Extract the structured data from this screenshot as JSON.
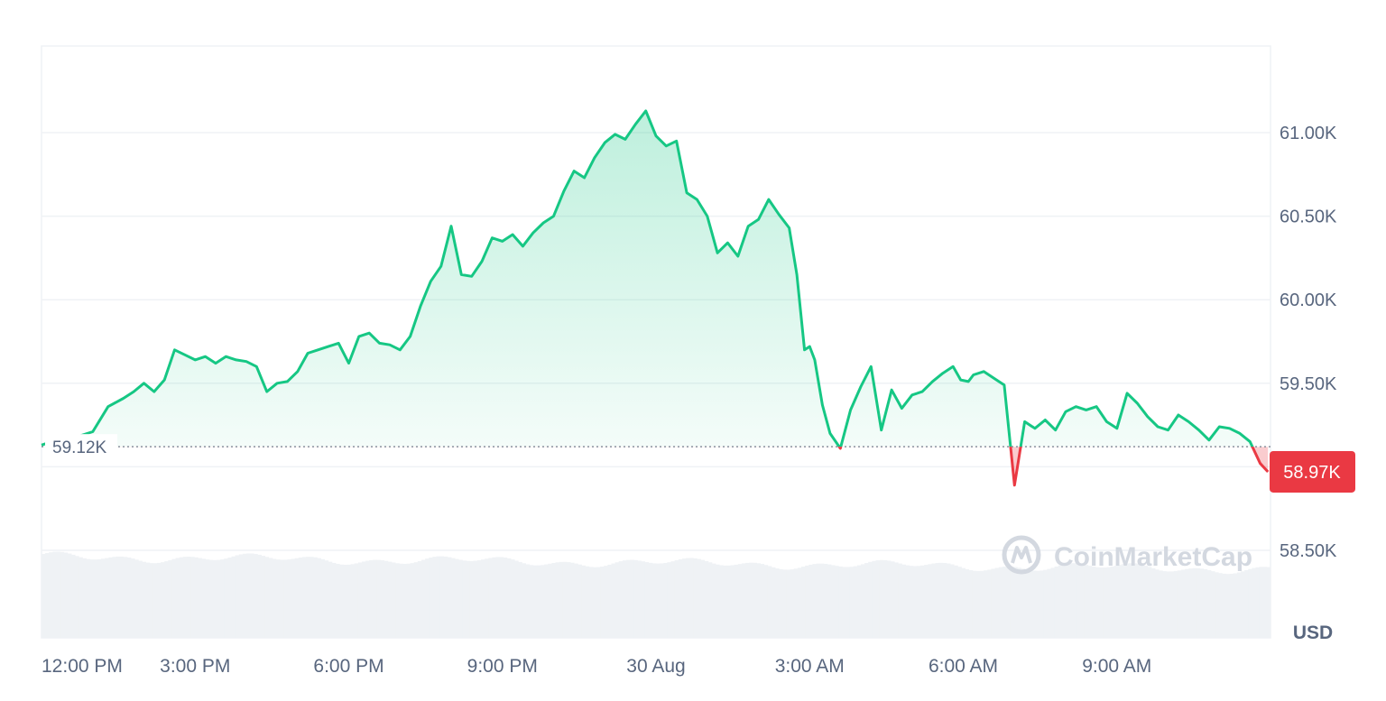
{
  "chart_data": {
    "type": "area",
    "currency_label": "USD",
    "y_tick_labels": [
      "61.00K",
      "60.50K",
      "60.00K",
      "59.50K",
      "58.50K"
    ],
    "y_ticks": [
      61000,
      60500,
      60000,
      59500,
      58500
    ],
    "x_tick_labels": [
      "12:00 PM",
      "3:00 PM",
      "6:00 PM",
      "9:00 PM",
      "30 Aug",
      "3:00 AM",
      "6:00 AM",
      "9:00 AM"
    ],
    "x_ticks": [
      12,
      15,
      18,
      21,
      24,
      27,
      30,
      33
    ],
    "xlim": [
      12,
      36
    ],
    "ylim": [
      58300,
      61500
    ],
    "grid": true,
    "baseline": {
      "value": 59120,
      "label": "59.12K"
    },
    "last_price": {
      "value": 58970,
      "label": "58.97K"
    },
    "colors": {
      "up": "#16c784",
      "down": "#ea3943",
      "grid": "#eff2f5",
      "volume": "#eff2f5"
    },
    "watermark": "CoinMarketCap",
    "series": [
      {
        "x": [
          12.0,
          12.2,
          12.4,
          12.6,
          12.8,
          13.0,
          13.3,
          13.6,
          13.8,
          14.0,
          14.2,
          14.4,
          14.6,
          14.8,
          15.0,
          15.2,
          15.4,
          15.6,
          15.8,
          16.0,
          16.2,
          16.4,
          16.6,
          16.8,
          17.0,
          17.2,
          17.4,
          17.6,
          17.8,
          18.0,
          18.2,
          18.4,
          18.6,
          18.8,
          19.0,
          19.2,
          19.4,
          19.6,
          19.8,
          20.0,
          20.2,
          20.4,
          20.6,
          20.8,
          21.0,
          21.2,
          21.4,
          21.6,
          21.8,
          22.0,
          22.2,
          22.4,
          22.6,
          22.8,
          23.0,
          23.2,
          23.4,
          23.6,
          23.8,
          24.0,
          24.2,
          24.4,
          24.6,
          24.8,
          25.0,
          25.2,
          25.4,
          25.6,
          25.8,
          26.0,
          26.2,
          26.4,
          26.6,
          26.75,
          26.9,
          27.0,
          27.1,
          27.25,
          27.4,
          27.6,
          27.8,
          28.0,
          28.2,
          28.4,
          28.6,
          28.8,
          29.0,
          29.2,
          29.4,
          29.6,
          29.8,
          29.95,
          30.1,
          30.2,
          30.4,
          30.6,
          30.8,
          31.0,
          31.2,
          31.4,
          31.6,
          31.8,
          32.0,
          32.2,
          32.4,
          32.6,
          32.8,
          33.0,
          33.2,
          33.4,
          33.6,
          33.8,
          34.0,
          34.2,
          34.4,
          34.6,
          34.8,
          35.0,
          35.2,
          35.4,
          35.6,
          35.8,
          35.95
        ],
        "y": [
          59130,
          59150,
          59140,
          59170,
          59190,
          59210,
          59360,
          59410,
          59450,
          59500,
          59450,
          59520,
          59700,
          59670,
          59640,
          59660,
          59620,
          59660,
          59640,
          59630,
          59600,
          59450,
          59500,
          59510,
          59570,
          59680,
          59700,
          59720,
          59740,
          59620,
          59780,
          59800,
          59740,
          59730,
          59700,
          59780,
          59960,
          60110,
          60200,
          60440,
          60150,
          60140,
          60230,
          60370,
          60350,
          60390,
          60320,
          60400,
          60460,
          60500,
          60650,
          60770,
          60730,
          60850,
          60940,
          60990,
          60960,
          61050,
          61130,
          60980,
          60920,
          60950,
          60640,
          60600,
          60500,
          60280,
          60340,
          60260,
          60440,
          60480,
          60600,
          60510,
          60430,
          60150,
          59700,
          59720,
          59640,
          59370,
          59200,
          59110,
          59340,
          59480,
          59600,
          59220,
          59460,
          59350,
          59430,
          59450,
          59510,
          59560,
          59600,
          59520,
          59510,
          59550,
          59570,
          59530,
          59490,
          58890,
          59270,
          59230,
          59280,
          59220,
          59330,
          59360,
          59340,
          59360,
          59270,
          59230,
          59440,
          59380,
          59300,
          59240,
          59220,
          59310,
          59270,
          59220,
          59160,
          59240,
          59230,
          59200,
          59150,
          59020,
          58970
        ]
      }
    ]
  }
}
